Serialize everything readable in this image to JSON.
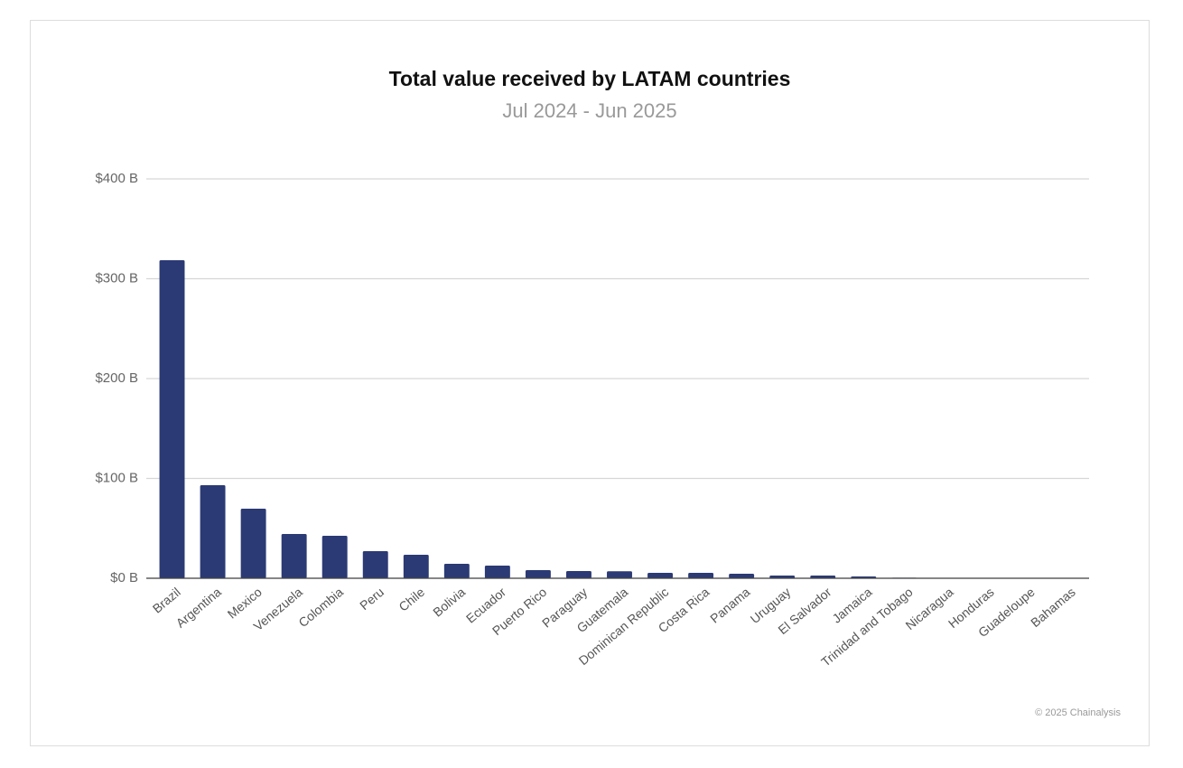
{
  "chart_data": {
    "type": "bar",
    "title": "Total value received by LATAM countries",
    "subtitle": "Jul 2024 - Jun 2025",
    "credit": "© 2025 Chainalysis",
    "categories": [
      "Brazil",
      "Argentina",
      "Mexico",
      "Venezuela",
      "Colombia",
      "Peru",
      "Chile",
      "Bolivia",
      "Ecuador",
      "Puerto Rico",
      "Paraguay",
      "Guatemala",
      "Dominican Republic",
      "Costa Rica",
      "Panama",
      "Uruguay",
      "El Salvador",
      "Jamaica",
      "Trinidad and Tobago",
      "Nicaragua",
      "Honduras",
      "Guadeloupe",
      "Bahamas"
    ],
    "values": [
      318.6,
      93.2,
      69.7,
      44.3,
      42.5,
      27.1,
      23.5,
      14.5,
      12.7,
      8.1,
      7.2,
      7.0,
      5.4,
      5.4,
      4.5,
      2.7,
      2.7,
      1.8,
      0.6,
      0.5,
      0.4,
      0.2,
      0.1
    ],
    "color": "#2b3a74",
    "ylim": [
      0,
      400
    ],
    "yticks": [
      {
        "value": 0,
        "label": "$0 B"
      },
      {
        "value": 100,
        "label": "$100 B"
      },
      {
        "value": 200,
        "label": "$200 B"
      },
      {
        "value": 300,
        "label": "$300 B"
      },
      {
        "value": 400,
        "label": "$400 B"
      }
    ],
    "grid": true
  }
}
